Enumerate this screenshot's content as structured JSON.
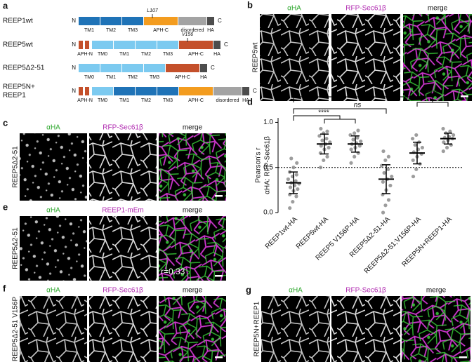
{
  "panel_a": {
    "label": "a",
    "constructs": [
      {
        "name": [
          "REEP1wt"
        ],
        "n_term": "N",
        "c_term": "C",
        "segments": [
          {
            "label": "TM1",
            "color": "#1f73b7"
          },
          {
            "label": "TM2",
            "color": "#1f73b7"
          },
          {
            "label": "TM3",
            "color": "#1f73b7"
          },
          {
            "label": "APH-C",
            "color": "#f39c1f",
            "mutation": "L107"
          },
          {
            "label": "disordered",
            "color": "#a3a3a3"
          },
          {
            "label": "HA",
            "color": "#4d4d4d"
          }
        ]
      },
      {
        "name": [
          "REEP5wt"
        ],
        "n_term": "N",
        "c_term": "C",
        "segments": [
          {
            "label": "APH-N",
            "color": "#c4502b"
          },
          {
            "label": "TM0",
            "color": "#7ccaf0"
          },
          {
            "label": "TM1",
            "color": "#7ccaf0"
          },
          {
            "label": "TM2",
            "color": "#7ccaf0"
          },
          {
            "label": "TM3",
            "color": "#7ccaf0"
          },
          {
            "label": "APH-C",
            "color": "#c4502b",
            "mutation": "V156"
          },
          {
            "label": "HA",
            "color": "#4d4d4d"
          }
        ]
      },
      {
        "name": [
          "REEP5Δ2-51"
        ],
        "n_term": "N",
        "c_term": "C",
        "segments": [
          {
            "label": "TM0",
            "color": "#7ccaf0"
          },
          {
            "label": "TM1",
            "color": "#7ccaf0"
          },
          {
            "label": "TM2",
            "color": "#7ccaf0"
          },
          {
            "label": "TM3",
            "color": "#7ccaf0"
          },
          {
            "label": "APH-C",
            "color": "#c4502b"
          },
          {
            "label": "HA",
            "color": "#4d4d4d"
          }
        ]
      },
      {
        "name": [
          "REEP5N+",
          "REEP1"
        ],
        "n_term": "N",
        "c_term": "C",
        "segments": [
          {
            "label": "APH-N",
            "color": "#c4502b"
          },
          {
            "label": "TM0",
            "color": "#7ccaf0"
          },
          {
            "label": "TM1",
            "color": "#1f73b7"
          },
          {
            "label": "TM2",
            "color": "#1f73b7"
          },
          {
            "label": "TM3",
            "color": "#1f73b7"
          },
          {
            "label": "APH-C",
            "color": "#f39c1f"
          },
          {
            "label": "disordered",
            "color": "#a3a3a3"
          },
          {
            "label": "HA",
            "color": "#4d4d4d"
          }
        ]
      }
    ]
  },
  "panel_b": {
    "label": "b",
    "side_label": "REEP5wt",
    "channels": [
      "αHA",
      "RFP-Sec61β",
      "merge"
    ]
  },
  "panel_c": {
    "label": "c",
    "side_label": "REEP5Δ2-51",
    "channels": [
      "αHA",
      "RFP-Sec61β",
      "merge"
    ]
  },
  "panel_e": {
    "label": "e",
    "side_label": "REEP5Δ2-51",
    "channels": [
      "αHA",
      "REEP1-mEm",
      "merge"
    ],
    "inset": "r=0.33"
  },
  "panel_f": {
    "label": "f",
    "side_label": "REEP5Δ2-51 V156P",
    "channels": [
      "αHA",
      "RFP-Sec61β",
      "merge"
    ]
  },
  "panel_g": {
    "label": "g",
    "side_label": "REEP5N+REEP1",
    "channels": [
      "αHA",
      "RFP-Sec61β",
      "merge"
    ]
  },
  "panel_d": {
    "label": "d",
    "type": "dot_plot",
    "ylabel": [
      "Pearson's r",
      "αHA: RFP-Sec61β"
    ],
    "categories": [
      "REEP1wt-HA",
      "REEP5wt-HA",
      "REEP5 V156P-HA",
      "REEP5Δ2-51-HA",
      "REEP5Δ2-51;V156P-HA",
      "REEP5N+REEP1-HA"
    ],
    "points": [
      [
        0.05,
        0.12,
        0.18,
        0.2,
        0.24,
        0.26,
        0.28,
        0.3,
        0.32,
        0.33,
        0.35,
        0.37,
        0.4,
        0.42,
        0.45,
        0.5,
        0.55,
        0.6
      ],
      [
        0.5,
        0.58,
        0.62,
        0.66,
        0.7,
        0.72,
        0.74,
        0.76,
        0.78,
        0.8,
        0.82,
        0.85,
        0.88,
        0.9,
        0.93
      ],
      [
        0.55,
        0.62,
        0.66,
        0.7,
        0.72,
        0.74,
        0.76,
        0.77,
        0.79,
        0.81,
        0.83,
        0.86,
        0.88,
        0.91
      ],
      [
        0.0,
        0.08,
        0.14,
        0.2,
        0.25,
        0.3,
        0.34,
        0.37,
        0.4,
        0.44,
        0.48,
        0.52,
        0.58,
        0.62,
        0.68
      ],
      [
        0.4,
        0.48,
        0.54,
        0.58,
        0.62,
        0.65,
        0.67,
        0.7,
        0.72,
        0.75,
        0.78,
        0.82,
        0.86
      ],
      [
        0.68,
        0.72,
        0.75,
        0.78,
        0.8,
        0.82,
        0.83,
        0.84,
        0.86,
        0.88,
        0.9,
        0.93
      ]
    ],
    "means": [
      0.33,
      0.76,
      0.76,
      0.37,
      0.66,
      0.82
    ],
    "sd": [
      0.12,
      0.11,
      0.09,
      0.16,
      0.12,
      0.06
    ],
    "ylim": [
      0,
      1.05
    ],
    "yticks": [
      {
        "value": 0,
        "label": "0.0"
      },
      {
        "value": 0.5,
        "label": "0.5"
      },
      {
        "value": 1,
        "label": "1.0"
      }
    ],
    "reference_line": 0.5,
    "color": "#8c8c8c",
    "annotations": [
      "****",
      "ns",
      "****"
    ]
  }
}
